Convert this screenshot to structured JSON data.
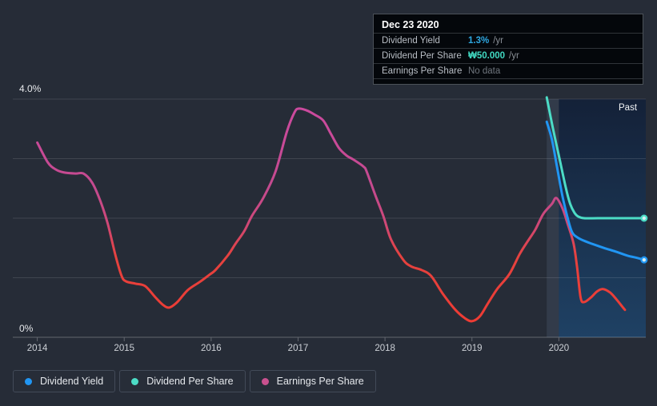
{
  "colors": {
    "background": "#262c37",
    "dividend_yield": "#2196f3",
    "dividend_per_share": "#4cdcc6",
    "earnings_per_share": "#c9518f",
    "gridline": "rgba(255,255,255,0.12)",
    "axis_line": "rgba(255,255,255,0.28)",
    "highlight_band": "rgba(140,170,215,0.12)"
  },
  "tooltip": {
    "date": "Dec 23 2020",
    "rows": [
      {
        "label": "Dividend Yield",
        "value": "1.3%",
        "unit": "/yr",
        "color": "#2fa9e3",
        "bold": true
      },
      {
        "label": "Dividend Per Share",
        "value": "₩50.000",
        "unit": "/yr",
        "color": "#41d9c2",
        "bold": true
      },
      {
        "label": "Earnings Per Share",
        "value": "No data",
        "unit": "",
        "color": "#6f757d",
        "bold": false
      }
    ]
  },
  "legend": {
    "items": [
      {
        "label": "Dividend Yield",
        "color": "#2196f3"
      },
      {
        "label": "Dividend Per Share",
        "color": "#4cdcc6"
      },
      {
        "label": "Earnings Per Share",
        "color": "#c9518f"
      }
    ]
  },
  "chart_data": {
    "type": "line",
    "xlim": [
      2013.7,
      2021.0
    ],
    "ylim": [
      0,
      4
    ],
    "x_ticks": [
      2014,
      2015,
      2016,
      2017,
      2018,
      2019,
      2020
    ],
    "x_tick_labels": [
      "2014",
      "2015",
      "2016",
      "2017",
      "2018",
      "2019",
      "2020"
    ],
    "y_axis": {
      "top_label": "4.0%",
      "bottom_label": "0%"
    },
    "grid_pcts": [
      0,
      1,
      2,
      3,
      4
    ],
    "past_label": "Past",
    "past_region": {
      "start_year": 2019.86,
      "band_end_year": 2020.0
    },
    "eps_gradient_stops": [
      [
        0,
        "#cc4aa0"
      ],
      [
        0.38,
        "#c44a8e"
      ],
      [
        0.52,
        "#ce4878"
      ],
      [
        0.66,
        "#e5423f"
      ],
      [
        1,
        "#f03a31"
      ]
    ],
    "past_gradient_stops": [
      [
        0,
        "#142138"
      ],
      [
        0.55,
        "#1a3350"
      ],
      [
        1,
        "#1f4164"
      ]
    ],
    "series": [
      {
        "name": "Earnings Per Share",
        "style": "gradient",
        "end_dot": false,
        "points": [
          [
            2014.0,
            3.27
          ],
          [
            2014.12,
            2.94
          ],
          [
            2014.21,
            2.82
          ],
          [
            2014.3,
            2.77
          ],
          [
            2014.44,
            2.75
          ],
          [
            2014.53,
            2.75
          ],
          [
            2014.63,
            2.6
          ],
          [
            2014.72,
            2.31
          ],
          [
            2014.81,
            1.91
          ],
          [
            2014.9,
            1.37
          ],
          [
            2014.97,
            1.03
          ],
          [
            2015.02,
            0.94
          ],
          [
            2015.13,
            0.9
          ],
          [
            2015.24,
            0.86
          ],
          [
            2015.36,
            0.67
          ],
          [
            2015.45,
            0.54
          ],
          [
            2015.52,
            0.5
          ],
          [
            2015.61,
            0.59
          ],
          [
            2015.73,
            0.79
          ],
          [
            2015.87,
            0.93
          ],
          [
            2015.98,
            1.05
          ],
          [
            2016.05,
            1.13
          ],
          [
            2016.19,
            1.37
          ],
          [
            2016.28,
            1.57
          ],
          [
            2016.38,
            1.78
          ],
          [
            2016.47,
            2.04
          ],
          [
            2016.6,
            2.34
          ],
          [
            2016.74,
            2.78
          ],
          [
            2016.87,
            3.45
          ],
          [
            2016.96,
            3.78
          ],
          [
            2017.01,
            3.84
          ],
          [
            2017.1,
            3.81
          ],
          [
            2017.19,
            3.74
          ],
          [
            2017.29,
            3.64
          ],
          [
            2017.38,
            3.41
          ],
          [
            2017.47,
            3.18
          ],
          [
            2017.56,
            3.05
          ],
          [
            2017.63,
            2.99
          ],
          [
            2017.75,
            2.87
          ],
          [
            2017.79,
            2.78
          ],
          [
            2017.89,
            2.38
          ],
          [
            2017.98,
            2.04
          ],
          [
            2018.07,
            1.64
          ],
          [
            2018.21,
            1.3
          ],
          [
            2018.3,
            1.19
          ],
          [
            2018.42,
            1.13
          ],
          [
            2018.53,
            1.03
          ],
          [
            2018.67,
            0.72
          ],
          [
            2018.81,
            0.46
          ],
          [
            2018.92,
            0.32
          ],
          [
            2019.0,
            0.27
          ],
          [
            2019.09,
            0.35
          ],
          [
            2019.18,
            0.56
          ],
          [
            2019.29,
            0.81
          ],
          [
            2019.43,
            1.06
          ],
          [
            2019.55,
            1.4
          ],
          [
            2019.64,
            1.61
          ],
          [
            2019.73,
            1.81
          ],
          [
            2019.82,
            2.07
          ],
          [
            2019.92,
            2.24
          ],
          [
            2019.97,
            2.34
          ],
          [
            2020.04,
            2.17
          ],
          [
            2020.1,
            1.91
          ],
          [
            2020.17,
            1.57
          ],
          [
            2020.21,
            1.17
          ],
          [
            2020.25,
            0.67
          ],
          [
            2020.29,
            0.59
          ],
          [
            2020.37,
            0.67
          ],
          [
            2020.44,
            0.77
          ],
          [
            2020.51,
            0.81
          ],
          [
            2020.59,
            0.75
          ],
          [
            2020.66,
            0.64
          ],
          [
            2020.71,
            0.55
          ],
          [
            2020.76,
            0.46
          ]
        ]
      },
      {
        "name": "Dividend Yield",
        "style": "solid",
        "color": "#2196f3",
        "end_dot": true,
        "points": [
          [
            2019.86,
            3.62
          ],
          [
            2019.92,
            3.32
          ],
          [
            2019.98,
            2.85
          ],
          [
            2020.04,
            2.38
          ],
          [
            2020.1,
            2.01
          ],
          [
            2020.15,
            1.77
          ],
          [
            2020.21,
            1.68
          ],
          [
            2020.29,
            1.62
          ],
          [
            2020.38,
            1.57
          ],
          [
            2020.52,
            1.5
          ],
          [
            2020.65,
            1.44
          ],
          [
            2020.79,
            1.37
          ],
          [
            2020.88,
            1.34
          ],
          [
            2020.98,
            1.3
          ]
        ]
      },
      {
        "name": "Dividend Per Share",
        "style": "solid",
        "color": "#4cdcc6",
        "end_dot": true,
        "points": [
          [
            2019.86,
            4.03
          ],
          [
            2019.93,
            3.52
          ],
          [
            2020.01,
            2.98
          ],
          [
            2020.08,
            2.51
          ],
          [
            2020.13,
            2.24
          ],
          [
            2020.18,
            2.09
          ],
          [
            2020.22,
            2.03
          ],
          [
            2020.29,
            2.0
          ],
          [
            2020.45,
            2.0
          ],
          [
            2020.7,
            2.0
          ],
          [
            2020.98,
            2.0
          ]
        ]
      }
    ]
  }
}
